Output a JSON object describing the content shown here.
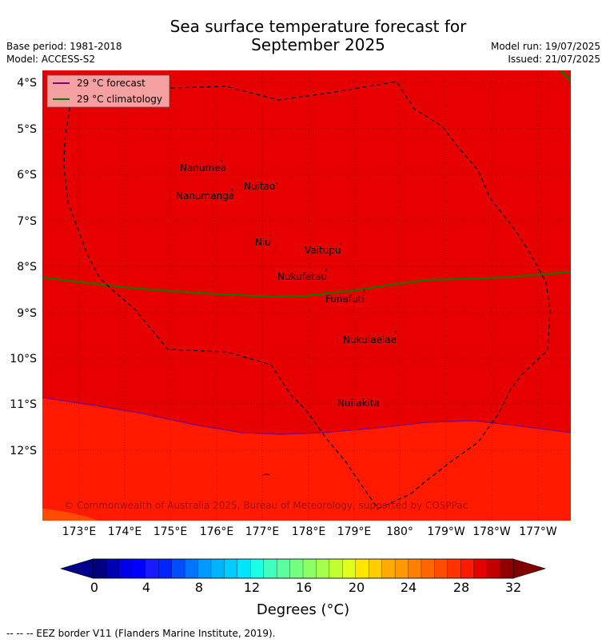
{
  "title_line1": "Sea surface temperature forecast for",
  "title_line2": "September 2025",
  "base_period": "Base period: 1981-2018",
  "model": "Model: ACCESS-S2",
  "model_run": "Model run: 19/07/2025",
  "issued": "Issued: 21/07/2025",
  "legend": {
    "forecast": "29 °C  forecast",
    "climatology": "29 °C  climatology",
    "forecast_color": "#800080",
    "climatology_color": "#008000"
  },
  "copyright": "© Commonwealth of Australia 2025, Bureau of Meteorology, supported by COSPPac",
  "lat_labels": [
    "4°S",
    "5°S",
    "6°S",
    "7°S",
    "8°S",
    "9°S",
    "10°S",
    "11°S",
    "12°S"
  ],
  "lon_labels": [
    "173°E",
    "174°E",
    "175°E",
    "176°E",
    "177°E",
    "178°E",
    "179°E",
    "180°",
    "179°W",
    "178°W",
    "177°W"
  ],
  "places": [
    {
      "name": "Nanumea"
    },
    {
      "name": "Nuitao"
    },
    {
      "name": "Nanumanga"
    },
    {
      "name": "Niu"
    },
    {
      "name": "Vaitupu"
    },
    {
      "name": "Nukufetau"
    },
    {
      "name": "Funafuti"
    },
    {
      "name": "Nukulaelae"
    },
    {
      "name": "Nuilakita"
    }
  ],
  "colorbar": {
    "ticks": [
      "0",
      "4",
      "8",
      "12",
      "16",
      "20",
      "24",
      "28",
      "32"
    ],
    "label": "Degrees (°C)",
    "colors": [
      "#000080",
      "#0000b3",
      "#0000e6",
      "#0000ff",
      "#1a1aff",
      "#0026ff",
      "#004dff",
      "#0073ff",
      "#0099ff",
      "#00b3ff",
      "#00ccff",
      "#00e5ff",
      "#1affe6",
      "#40ffbf",
      "#5cff9e",
      "#73ff80",
      "#8cff66",
      "#a6ff4d",
      "#c0ff33",
      "#e0ff1a",
      "#ffe600",
      "#ffcc00",
      "#ffaa00",
      "#ff9900",
      "#ff8000",
      "#ff6600",
      "#ff4d00",
      "#ff3300",
      "#ff1a00",
      "#e60000",
      "#c00000",
      "#900000"
    ],
    "under_color": "#00008b",
    "over_color": "#800000"
  },
  "map_colors": {
    "warm": "#e60000",
    "cooler": "#ff1a00",
    "coolest_corner": "#ff4d00"
  },
  "eez_note": "--  --  -- EEZ border V11 (Flanders Marine Institute, 2019)."
}
